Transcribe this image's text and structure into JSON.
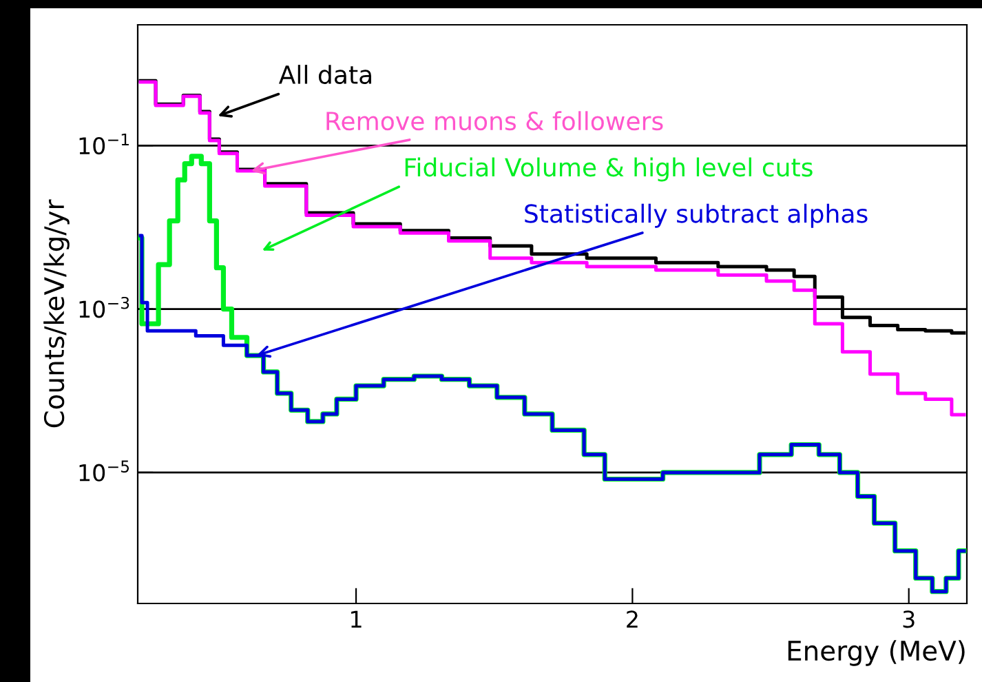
{
  "chart_data": {
    "type": "step",
    "xlabel": "Energy (MeV)",
    "ylabel": "Counts/keV/kg/yr",
    "log": "y",
    "grid": "y",
    "line_style": "solid",
    "xlim": [
      0.21,
      3.21
    ],
    "xticks": [
      1,
      2,
      3
    ],
    "ylim": [
      2.5e-07,
      3
    ],
    "yticks": [
      {
        "value": 0.1,
        "label": "10$^{−1}$"
      },
      {
        "value": 0.001,
        "label": "10$^{−3}$"
      },
      {
        "value": 1e-05,
        "label": "10$^{−5}$"
      }
    ],
    "series": [
      {
        "color": "#000000",
        "x": [
          0.22,
          0.33,
          0.42,
          0.45,
          0.49,
          0.52,
          0.62,
          0.72,
          0.92,
          1.06,
          1.26,
          1.41,
          1.56,
          1.71,
          1.96,
          2.21,
          2.41,
          2.56,
          2.61,
          2.71,
          2.81,
          2.91,
          3.01,
          3.11,
          3.2
        ],
        "values": [
          0.62,
          0.32,
          0.41,
          0.26,
          0.12,
          0.083,
          0.051,
          0.034,
          0.015,
          0.011,
          0.0091,
          0.0074,
          0.0059,
          0.0047,
          0.0042,
          0.0037,
          0.0033,
          0.003,
          0.0025,
          0.0014,
          0.00079,
          0.00063,
          0.00056,
          0.00054,
          0.00051
        ]
      },
      {
        "color": "#ff00ff",
        "x": [
          0.22,
          0.33,
          0.42,
          0.45,
          0.49,
          0.52,
          0.62,
          0.72,
          0.92,
          1.06,
          1.26,
          1.41,
          1.56,
          1.71,
          1.96,
          2.21,
          2.41,
          2.56,
          2.61,
          2.71,
          2.81,
          2.91,
          3.01,
          3.11,
          3.2
        ],
        "values": [
          0.6,
          0.31,
          0.4,
          0.25,
          0.115,
          0.08,
          0.049,
          0.032,
          0.014,
          0.0102,
          0.0085,
          0.0068,
          0.0042,
          0.0037,
          0.0033,
          0.003,
          0.0026,
          0.0022,
          0.0017,
          0.00066,
          0.0003,
          0.00016,
          9.3e-05,
          7.9e-05,
          5.1e-05
        ]
      },
      {
        "color": "#00ee22",
        "x": [
          0.22,
          0.23,
          0.26,
          0.31,
          0.34,
          0.37,
          0.39,
          0.42,
          0.46,
          0.48,
          0.51,
          0.53,
          0.57,
          0.64,
          0.69,
          0.74,
          0.79,
          0.86,
          0.9,
          0.96,
          1.04,
          1.16,
          1.26,
          1.36,
          1.46,
          1.56,
          1.66,
          1.76,
          1.89,
          1.91,
          2.01,
          2.21,
          2.41,
          2.51,
          2.64,
          2.71,
          2.79,
          2.84,
          2.91,
          2.99,
          3.06,
          3.11,
          3.16,
          3.2
        ],
        "values": [
          0.0074,
          0.00066,
          0.00066,
          0.0035,
          0.012,
          0.038,
          0.06,
          0.074,
          0.06,
          0.012,
          0.0032,
          0.001,
          0.00045,
          0.00027,
          0.00017,
          9.3e-05,
          5.8e-05,
          4.2e-05,
          5.2e-05,
          7.9e-05,
          0.000115,
          0.000138,
          0.000151,
          0.000138,
          0.000115,
          8.3e-05,
          5.2e-05,
          3.3e-05,
          1.66e-05,
          8.3e-06,
          8.3e-06,
          1e-05,
          1e-05,
          1.66e-05,
          2.19e-05,
          1.66e-05,
          1e-05,
          5.1e-06,
          2.4e-06,
          1.1e-06,
          5.1e-07,
          3.5e-07,
          5.1e-07,
          1.1e-06
        ]
      },
      {
        "color": "#0000dd",
        "x": [
          0.22,
          0.23,
          0.26,
          0.37,
          0.47,
          0.57,
          0.64,
          0.69,
          0.74,
          0.79,
          0.86,
          0.9,
          0.96,
          1.04,
          1.16,
          1.26,
          1.36,
          1.46,
          1.56,
          1.66,
          1.76,
          1.89,
          1.91,
          2.01,
          2.21,
          2.41,
          2.51,
          2.64,
          2.71,
          2.79,
          2.84,
          2.91,
          2.99,
          3.06,
          3.11,
          3.16,
          3.2
        ],
        "values": [
          0.0079,
          0.0012,
          0.00054,
          0.00054,
          0.00047,
          0.00036,
          0.00027,
          0.00017,
          9.3e-05,
          5.8e-05,
          4.2e-05,
          5.2e-05,
          7.9e-05,
          0.000115,
          0.000138,
          0.000151,
          0.000138,
          0.000115,
          8.3e-05,
          5.2e-05,
          3.3e-05,
          1.66e-05,
          8.3e-06,
          8.3e-06,
          1e-05,
          1e-05,
          1.66e-05,
          2.19e-05,
          1.66e-05,
          1e-05,
          5.1e-06,
          2.4e-06,
          1.1e-06,
          5.1e-07,
          3.5e-07,
          5.1e-07,
          1.1e-06
        ]
      }
    ],
    "annotations": [
      {
        "text": "All data",
        "x": 0.5,
        "y": 0.23
      },
      {
        "text": "Remove muons & followers",
        "x": 0.62,
        "y": 0.049
      },
      "Fiducial Volume & high level cuts",
      {
        "text": "Statistically subtract alphas",
        "x": 0.64,
        "y": 0.00027
      }
    ]
  }
}
